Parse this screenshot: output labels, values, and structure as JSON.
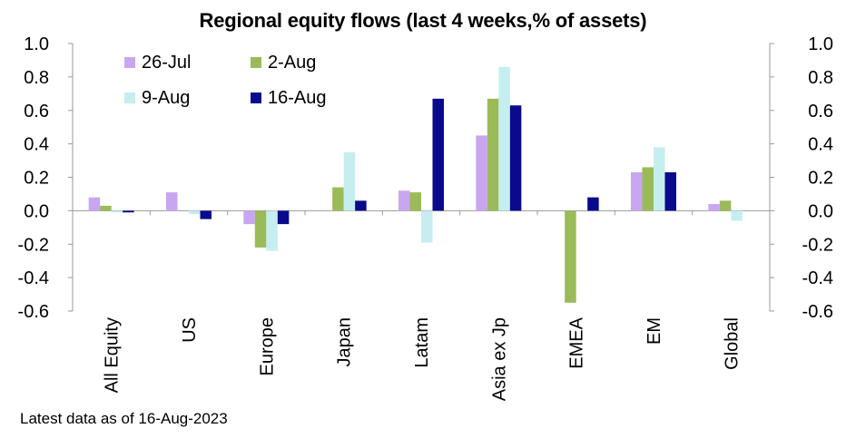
{
  "chart_data": {
    "type": "bar",
    "title": "Regional equity flows (last 4 weeks,% of assets)",
    "categories": [
      "All Equity",
      "US",
      "Europe",
      "Japan",
      "Latam",
      "Asia ex Jp",
      "EMEA",
      "EM",
      "Global"
    ],
    "series": [
      {
        "name": "26-Jul",
        "color": "#c9a6f0",
        "values": [
          0.08,
          0.11,
          -0.08,
          0.0,
          0.12,
          0.45,
          0.0,
          0.23,
          0.04
        ]
      },
      {
        "name": "2-Aug",
        "color": "#9bbb59",
        "values": [
          0.03,
          0.0,
          -0.22,
          0.14,
          0.11,
          0.67,
          -0.55,
          0.26,
          0.06
        ]
      },
      {
        "name": "9-Aug",
        "color": "#c6eef0",
        "values": [
          -0.01,
          -0.02,
          -0.24,
          0.35,
          -0.19,
          0.86,
          0.0,
          0.38,
          -0.06
        ]
      },
      {
        "name": "16-Aug",
        "color": "#0a0a8c",
        "values": [
          -0.01,
          -0.05,
          -0.08,
          0.06,
          0.67,
          0.63,
          0.08,
          0.23,
          0.0
        ]
      }
    ],
    "ylim": [
      -0.6,
      1.0
    ],
    "yticks": [
      "1.0",
      "0.8",
      "0.6",
      "0.4",
      "0.2",
      "0.0",
      "-0.2",
      "-0.4",
      "-0.6"
    ],
    "ytick_values": [
      1.0,
      0.8,
      0.6,
      0.4,
      0.2,
      0.0,
      -0.2,
      -0.4,
      -0.6
    ],
    "legend_placement": "top-left",
    "grid": false
  },
  "footnote": "Latest data as of 16-Aug-2023"
}
